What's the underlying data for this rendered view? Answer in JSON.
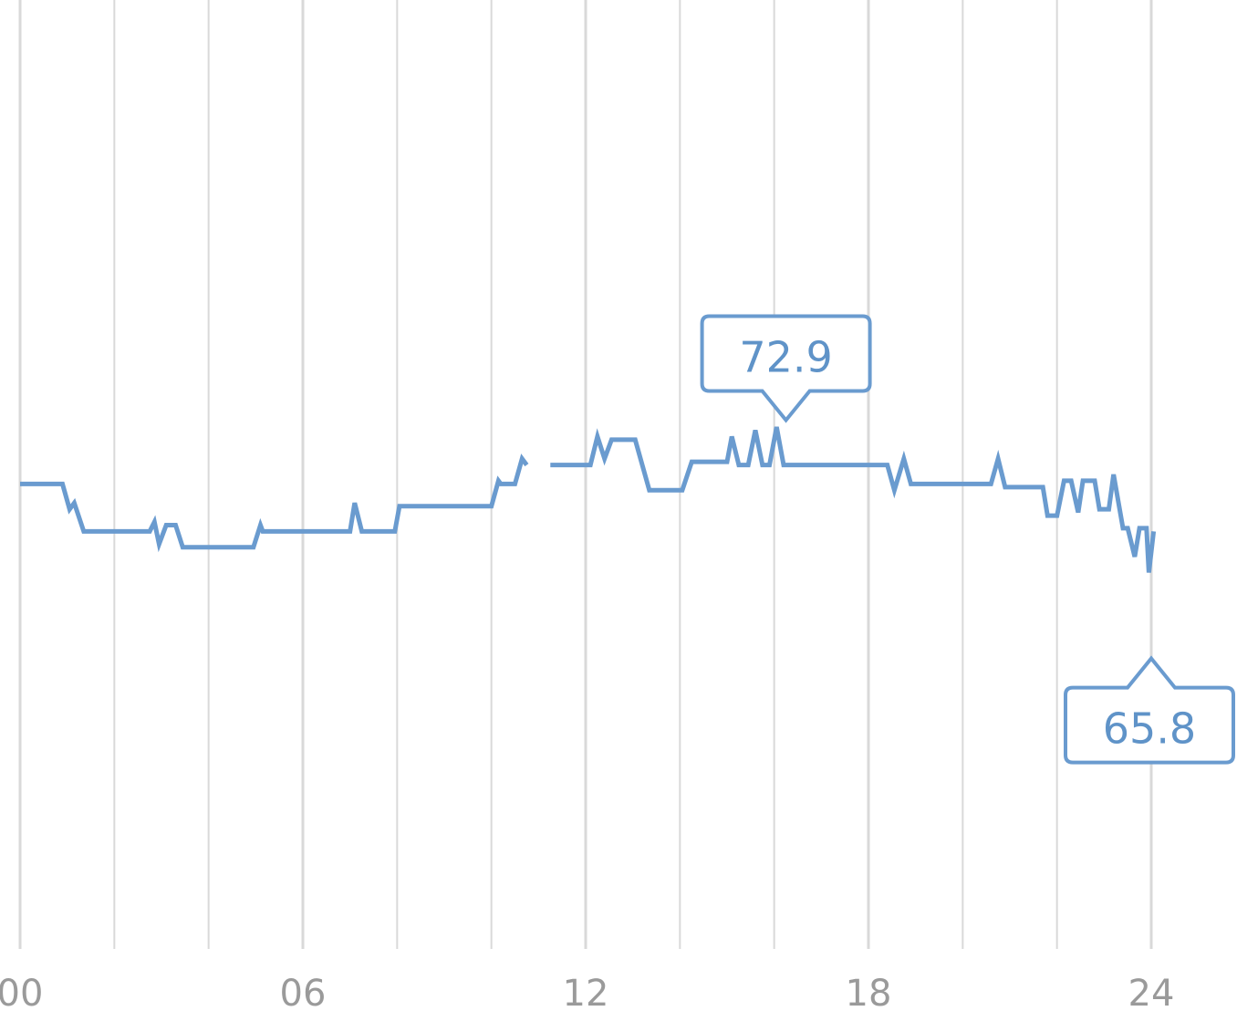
{
  "chart_data": {
    "type": "line",
    "title": "",
    "xlabel": "",
    "ylabel": "",
    "xlim": [
      0,
      24
    ],
    "ylim": [
      55,
      85
    ],
    "x_ticks": [
      {
        "x": 0,
        "label": "00"
      },
      {
        "x": 6,
        "label": "06"
      },
      {
        "x": 12,
        "label": "12"
      },
      {
        "x": 18,
        "label": "18"
      },
      {
        "x": 24,
        "label": "24"
      }
    ],
    "gridlines_x": [
      0,
      2,
      4,
      6,
      8,
      10,
      12,
      14,
      16,
      18,
      20,
      22,
      24
    ],
    "grid": true,
    "legend": "none",
    "colors": {
      "line": "#6a9bcf",
      "grid": "#d9d9d9",
      "tick_text": "#9a9a9a"
    },
    "series": [
      {
        "segments": [
          [
            [
              0.0,
              69.7
            ],
            [
              0.9,
              69.7
            ],
            [
              1.05,
              68.9
            ],
            [
              1.15,
              69.1
            ],
            [
              1.35,
              68.2
            ],
            [
              2.75,
              68.2
            ],
            [
              2.85,
              68.5
            ],
            [
              2.95,
              67.8
            ],
            [
              3.1,
              68.4
            ],
            [
              3.3,
              68.4
            ],
            [
              3.45,
              67.7
            ],
            [
              4.95,
              67.7
            ],
            [
              5.1,
              68.4
            ],
            [
              5.15,
              68.2
            ],
            [
              7.0,
              68.2
            ],
            [
              7.1,
              69.1
            ],
            [
              7.25,
              68.2
            ],
            [
              7.95,
              68.2
            ],
            [
              8.05,
              69.0
            ],
            [
              10.0,
              69.0
            ],
            [
              10.15,
              69.8
            ],
            [
              10.2,
              69.7
            ],
            [
              10.5,
              69.7
            ],
            [
              10.65,
              70.5
            ],
            [
              10.75,
              70.3
            ]
          ],
          [
            [
              11.25,
              70.3
            ],
            [
              12.1,
              70.3
            ],
            [
              12.25,
              71.2
            ],
            [
              12.4,
              70.5
            ],
            [
              12.55,
              71.1
            ],
            [
              13.05,
              71.1
            ],
            [
              13.35,
              69.5
            ],
            [
              14.05,
              69.5
            ],
            [
              14.25,
              70.4
            ],
            [
              15.0,
              70.4
            ],
            [
              15.1,
              71.2
            ],
            [
              15.25,
              70.3
            ],
            [
              15.45,
              70.3
            ],
            [
              15.6,
              71.4
            ],
            [
              15.75,
              70.3
            ],
            [
              15.9,
              70.3
            ],
            [
              16.05,
              71.5
            ],
            [
              16.2,
              70.3
            ],
            [
              18.4,
              70.3
            ],
            [
              18.55,
              69.5
            ],
            [
              18.75,
              70.5
            ],
            [
              18.9,
              69.7
            ],
            [
              20.6,
              69.7
            ],
            [
              20.75,
              70.5
            ],
            [
              20.9,
              69.6
            ],
            [
              21.7,
              69.6
            ],
            [
              21.8,
              68.7
            ],
            [
              22.0,
              68.7
            ],
            [
              22.15,
              69.8
            ],
            [
              22.3,
              69.8
            ],
            [
              22.45,
              68.8
            ],
            [
              22.55,
              69.8
            ],
            [
              22.8,
              69.8
            ],
            [
              22.9,
              68.9
            ],
            [
              23.1,
              68.9
            ],
            [
              23.2,
              70.0
            ],
            [
              23.4,
              68.3
            ],
            [
              23.5,
              68.3
            ],
            [
              23.65,
              67.4
            ],
            [
              23.75,
              68.3
            ],
            [
              23.9,
              68.3
            ],
            [
              23.95,
              66.9
            ],
            [
              24.05,
              68.2
            ]
          ]
        ]
      }
    ],
    "annotations": [
      {
        "label": "72.9",
        "x": 16.25,
        "y": 72.9,
        "position": "above"
      },
      {
        "label": "65.8",
        "x": 24.0,
        "y": 65.8,
        "position": "below"
      }
    ]
  }
}
